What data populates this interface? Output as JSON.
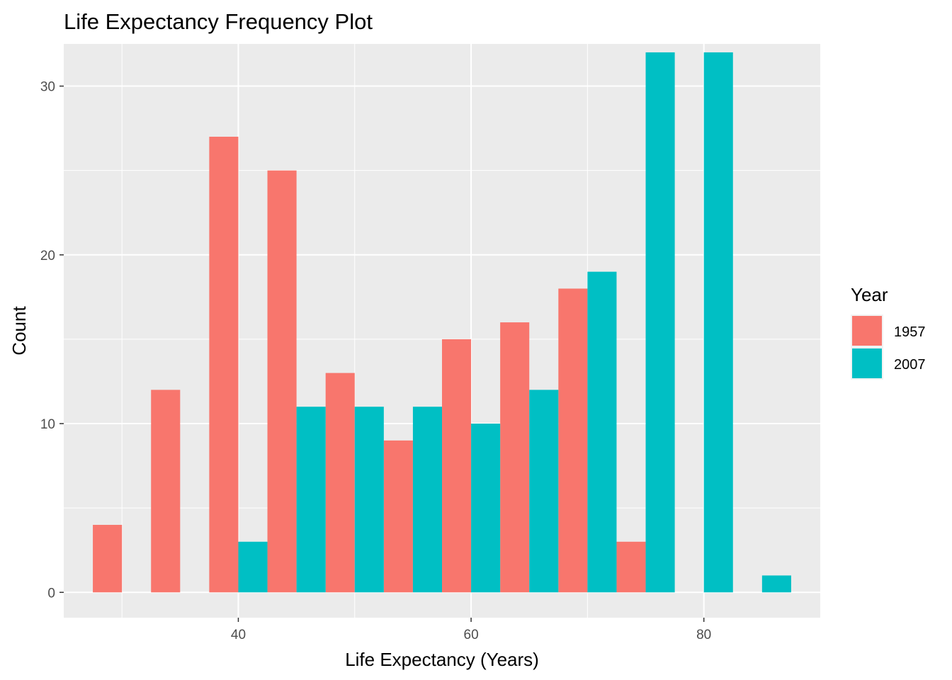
{
  "chart_data": {
    "type": "bar",
    "title": "Life Expectancy Frequency Plot",
    "xlabel": "Life Expectancy (Years)",
    "ylabel": "Count",
    "xlim": [
      25,
      90
    ],
    "ylim": [
      -1.5,
      32.5
    ],
    "x_ticks": [
      40,
      60,
      80
    ],
    "y_ticks": [
      0,
      10,
      20,
      30
    ],
    "grid": true,
    "legend": {
      "title": "Year",
      "position": "right"
    },
    "bin_width": 5,
    "bin_centers": [
      30,
      35,
      40,
      45,
      50,
      55,
      60,
      65,
      70,
      75,
      80,
      85
    ],
    "series": [
      {
        "name": "1957",
        "color": "#F8766D",
        "values": [
          4,
          12,
          27,
          25,
          13,
          9,
          15,
          16,
          18,
          3,
          0,
          0
        ]
      },
      {
        "name": "2007",
        "color": "#00BFC4",
        "values": [
          0,
          0,
          3,
          11,
          11,
          11,
          10,
          12,
          19,
          32,
          32,
          1
        ]
      }
    ],
    "panel_background": "#EBEBEB",
    "grid_color": "#FFFFFF"
  }
}
